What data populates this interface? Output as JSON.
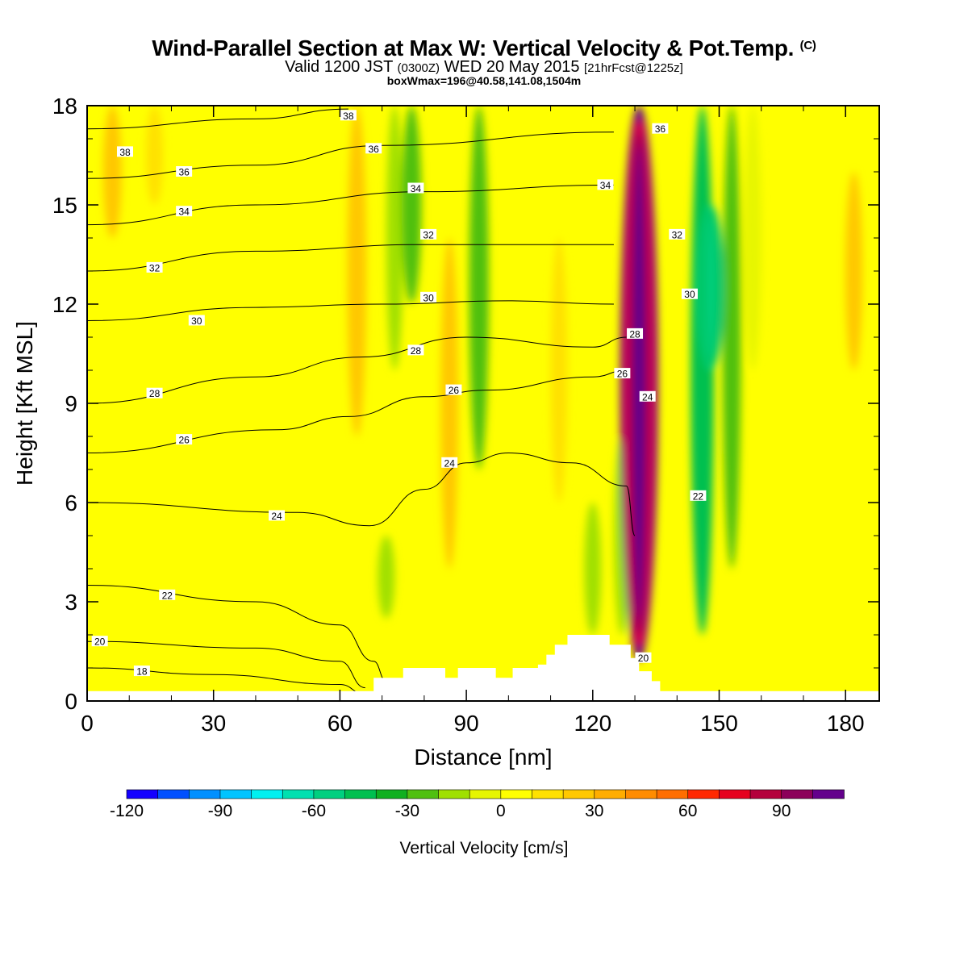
{
  "header": {
    "title": "Wind-Parallel Section at Max W: Vertical Velocity & Pot.Temp.",
    "title_mark": "(C)",
    "valid_prefix": "Valid 1200 JST",
    "valid_zulu": "(0300Z)",
    "valid_date": "WED 20 May 2015",
    "forecast_tag": "[21hrFcst@1225z]",
    "max_info": "boxWmax=196@40.58,141.08,1504m"
  },
  "chart_data": {
    "type": "heatmap",
    "xlabel": "Distance [nm]",
    "ylabel": "Height [Kft MSL]",
    "xlim": [
      0,
      188
    ],
    "ylim": [
      0,
      18
    ],
    "xticks": [
      "0",
      "30",
      "60",
      "90",
      "120",
      "150",
      "180"
    ],
    "yticks": [
      "0",
      "3",
      "6",
      "9",
      "12",
      "15",
      "18"
    ],
    "colorbar": {
      "label": "Vertical Velocity [cm/s]",
      "min": -120,
      "max": 110,
      "step": 10,
      "tick_labels": [
        "-120",
        "-90",
        "-60",
        "-30",
        "0",
        "30",
        "60",
        "90"
      ],
      "colors": [
        "#1400ff",
        "#0050ff",
        "#0090ff",
        "#00c4ff",
        "#00f0f0",
        "#00e0b0",
        "#00d080",
        "#00c050",
        "#10b020",
        "#50c010",
        "#a0e000",
        "#e6f500",
        "#ffff00",
        "#ffe100",
        "#ffc800",
        "#ffad00",
        "#ff8c00",
        "#ff6e00",
        "#ff2800",
        "#e6001e",
        "#b4003c",
        "#8c005a",
        "#64008c"
      ]
    },
    "velocity_features": [
      {
        "x": 6,
        "z_bottom": 14,
        "z_top": 18,
        "w": 25
      },
      {
        "x": 16,
        "z_bottom": 15,
        "z_top": 18,
        "w": 15
      },
      {
        "x": 64,
        "z_bottom": 8,
        "z_top": 18,
        "w": 28
      },
      {
        "x": 73,
        "z_bottom": 10,
        "z_top": 18,
        "w": -12
      },
      {
        "x": 77,
        "z_bottom": 12,
        "z_top": 18,
        "w": -30
      },
      {
        "x": 78,
        "z_bottom": 6,
        "z_top": 12,
        "w": 8
      },
      {
        "x": 71,
        "z_bottom": 2.5,
        "z_top": 5,
        "w": -18
      },
      {
        "x": 86,
        "z_bottom": 4,
        "z_top": 14,
        "w": 22
      },
      {
        "x": 93,
        "z_bottom": 7,
        "z_top": 18,
        "w": -30
      },
      {
        "x": 112,
        "z_bottom": 6,
        "z_top": 14,
        "w": 18
      },
      {
        "x": 120,
        "z_bottom": 2,
        "z_top": 6,
        "w": -18
      },
      {
        "x": 127,
        "z_bottom": 2,
        "z_top": 8,
        "w": -12
      },
      {
        "x": 131,
        "z_bottom": 1.2,
        "z_top": 18,
        "w": 110
      },
      {
        "x": 146,
        "z_bottom": 2,
        "z_top": 18,
        "w": -45
      },
      {
        "x": 148,
        "z_bottom": 10,
        "z_top": 15,
        "w": -60
      },
      {
        "x": 153,
        "z_bottom": 4,
        "z_top": 18,
        "w": -25
      },
      {
        "x": 158,
        "z_bottom": 10,
        "z_top": 18,
        "w": -10
      },
      {
        "x": 182,
        "z_bottom": 10,
        "z_top": 16,
        "w": 20
      }
    ],
    "theta_contours": [
      {
        "level": 18,
        "z_at_x": [
          [
            0,
            1.0
          ],
          [
            30,
            0.8
          ],
          [
            60,
            0.5
          ],
          [
            66,
            0.2
          ]
        ]
      },
      {
        "level": 20,
        "z_at_x": [
          [
            0,
            1.8
          ],
          [
            40,
            1.6
          ],
          [
            60,
            1.2
          ],
          [
            66,
            0.4
          ]
        ]
      },
      {
        "level": 22,
        "z_at_x": [
          [
            0,
            3.5
          ],
          [
            40,
            3.0
          ],
          [
            60,
            2.3
          ],
          [
            68,
            1.2
          ],
          [
            71,
            0.6
          ]
        ]
      },
      {
        "level": 24,
        "z_at_x": [
          [
            0,
            6.0
          ],
          [
            50,
            5.7
          ],
          [
            67,
            5.3
          ],
          [
            80,
            6.4
          ],
          [
            90,
            7.2
          ],
          [
            100,
            7.5
          ],
          [
            115,
            7.2
          ],
          [
            128,
            6.5
          ],
          [
            130,
            5.0
          ]
        ]
      },
      {
        "level": 26,
        "z_at_x": [
          [
            0,
            7.5
          ],
          [
            45,
            8.2
          ],
          [
            62,
            8.6
          ],
          [
            80,
            9.2
          ],
          [
            95,
            9.4
          ],
          [
            120,
            9.8
          ],
          [
            128,
            10.0
          ]
        ]
      },
      {
        "level": 28,
        "z_at_x": [
          [
            0,
            9.0
          ],
          [
            40,
            9.8
          ],
          [
            65,
            10.4
          ],
          [
            90,
            11.0
          ],
          [
            120,
            10.7
          ],
          [
            128,
            11.0
          ]
        ]
      },
      {
        "level": 30,
        "z_at_x": [
          [
            0,
            11.5
          ],
          [
            40,
            11.9
          ],
          [
            70,
            12.0
          ],
          [
            100,
            12.1
          ],
          [
            125,
            12.0
          ]
        ]
      },
      {
        "level": 32,
        "z_at_x": [
          [
            0,
            13.0
          ],
          [
            40,
            13.6
          ],
          [
            80,
            13.8
          ],
          [
            125,
            13.8
          ]
        ]
      },
      {
        "level": 34,
        "z_at_x": [
          [
            0,
            14.4
          ],
          [
            40,
            15.0
          ],
          [
            80,
            15.4
          ],
          [
            125,
            15.6
          ]
        ]
      },
      {
        "level": 36,
        "z_at_x": [
          [
            0,
            15.8
          ],
          [
            40,
            16.2
          ],
          [
            70,
            16.8
          ],
          [
            125,
            17.2
          ]
        ]
      },
      {
        "level": 38,
        "z_at_x": [
          [
            0,
            17.3
          ],
          [
            40,
            17.6
          ],
          [
            62,
            17.9
          ]
        ]
      }
    ],
    "contour_labels": [
      {
        "text": "38",
        "x": 9,
        "z": 16.6
      },
      {
        "text": "38",
        "x": 62,
        "z": 17.7
      },
      {
        "text": "36",
        "x": 23,
        "z": 16.0
      },
      {
        "text": "36",
        "x": 68,
        "z": 16.7
      },
      {
        "text": "36",
        "x": 136,
        "z": 17.3
      },
      {
        "text": "34",
        "x": 23,
        "z": 14.8
      },
      {
        "text": "34",
        "x": 78,
        "z": 15.5
      },
      {
        "text": "34",
        "x": 123,
        "z": 15.6
      },
      {
        "text": "32",
        "x": 16,
        "z": 13.1
      },
      {
        "text": "32",
        "x": 81,
        "z": 14.1
      },
      {
        "text": "32",
        "x": 140,
        "z": 14.1
      },
      {
        "text": "30",
        "x": 26,
        "z": 11.5
      },
      {
        "text": "30",
        "x": 81,
        "z": 12.2
      },
      {
        "text": "30",
        "x": 143,
        "z": 12.3
      },
      {
        "text": "28",
        "x": 16,
        "z": 9.3
      },
      {
        "text": "28",
        "x": 78,
        "z": 10.6
      },
      {
        "text": "28",
        "x": 130,
        "z": 11.1
      },
      {
        "text": "26",
        "x": 23,
        "z": 7.9
      },
      {
        "text": "26",
        "x": 87,
        "z": 9.4
      },
      {
        "text": "26",
        "x": 127,
        "z": 9.9
      },
      {
        "text": "24",
        "x": 45,
        "z": 5.6
      },
      {
        "text": "24",
        "x": 86,
        "z": 7.2
      },
      {
        "text": "24",
        "x": 133,
        "z": 9.2
      },
      {
        "text": "22",
        "x": 19,
        "z": 3.2
      },
      {
        "text": "22",
        "x": 145,
        "z": 6.2
      },
      {
        "text": "20",
        "x": 3,
        "z": 1.8
      },
      {
        "text": "20",
        "x": 132,
        "z": 1.3
      },
      {
        "text": "18",
        "x": 13,
        "z": 0.9
      }
    ],
    "terrain": [
      [
        0,
        0.3
      ],
      [
        60,
        0.3
      ],
      [
        68,
        0.3
      ],
      [
        68,
        0.7
      ],
      [
        75,
        0.7
      ],
      [
        75,
        1.0
      ],
      [
        85,
        1.0
      ],
      [
        85,
        0.7
      ],
      [
        88,
        0.7
      ],
      [
        88,
        1.0
      ],
      [
        97,
        1.0
      ],
      [
        97,
        0.7
      ],
      [
        101,
        0.7
      ],
      [
        101,
        1.0
      ],
      [
        107,
        1.0
      ],
      [
        107,
        1.1
      ],
      [
        109,
        1.1
      ],
      [
        109,
        1.4
      ],
      [
        111,
        1.4
      ],
      [
        111,
        1.7
      ],
      [
        114,
        1.7
      ],
      [
        114,
        2.0
      ],
      [
        124,
        2.0
      ],
      [
        124,
        1.7
      ],
      [
        129,
        1.7
      ],
      [
        129,
        1.3
      ],
      [
        131,
        1.3
      ],
      [
        131,
        0.9
      ],
      [
        134,
        0.9
      ],
      [
        134,
        0.6
      ],
      [
        136,
        0.6
      ],
      [
        136,
        0.3
      ],
      [
        188,
        0.3
      ]
    ]
  }
}
